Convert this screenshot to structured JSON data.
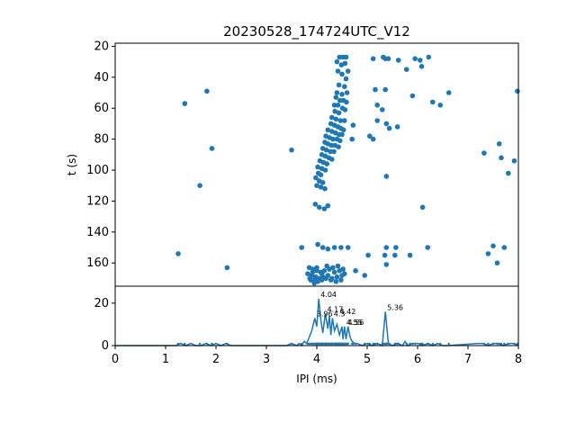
{
  "chart_data": [
    {
      "type": "scatter",
      "title": "20230528_174724UTC_V12",
      "xlabel": "",
      "ylabel": "t (s)",
      "xlim": [
        0,
        8
      ],
      "ylim": [
        175,
        18
      ],
      "y_inverted": true,
      "y_ticks": [
        20,
        40,
        60,
        80,
        100,
        120,
        140,
        160
      ],
      "grid": false,
      "color": "#1f77b4",
      "points": [
        [
          1.38,
          57
        ],
        [
          1.82,
          49
        ],
        [
          1.92,
          86
        ],
        [
          1.68,
          110
        ],
        [
          1.25,
          154
        ],
        [
          2.22,
          163
        ],
        [
          3.5,
          87
        ],
        [
          3.7,
          150
        ],
        [
          4.62,
          150
        ],
        [
          4.77,
          165
        ],
        [
          4.95,
          168
        ],
        [
          5.02,
          155
        ],
        [
          5.12,
          28
        ],
        [
          5.32,
          27
        ],
        [
          5.36,
          28
        ],
        [
          5.42,
          28
        ],
        [
          5.62,
          29
        ],
        [
          5.78,
          35
        ],
        [
          5.95,
          28
        ],
        [
          6.05,
          29
        ],
        [
          6.08,
          33
        ],
        [
          6.22,
          27
        ],
        [
          5.16,
          48
        ],
        [
          5.36,
          48
        ],
        [
          5.2,
          68
        ],
        [
          5.38,
          70
        ],
        [
          5.44,
          73
        ],
        [
          5.6,
          72
        ],
        [
          5.05,
          78
        ],
        [
          5.12,
          80
        ],
        [
          5.38,
          104
        ],
        [
          5.2,
          58
        ],
        [
          5.3,
          61
        ],
        [
          5.9,
          52
        ],
        [
          6.3,
          56
        ],
        [
          6.45,
          58
        ],
        [
          6.62,
          50
        ],
        [
          7.98,
          49
        ],
        [
          7.32,
          89
        ],
        [
          7.62,
          83
        ],
        [
          7.66,
          92
        ],
        [
          7.8,
          102
        ],
        [
          7.92,
          94
        ],
        [
          6.1,
          124
        ],
        [
          5.38,
          150
        ],
        [
          5.57,
          150
        ],
        [
          5.35,
          155
        ],
        [
          5.55,
          155
        ],
        [
          5.85,
          155
        ],
        [
          6.2,
          150
        ],
        [
          7.4,
          154
        ],
        [
          7.5,
          149
        ],
        [
          7.58,
          160
        ],
        [
          7.72,
          150
        ],
        [
          5.38,
          161
        ],
        [
          4.72,
          71
        ],
        [
          4.7,
          80
        ],
        [
          4.45,
          27
        ],
        [
          4.52,
          27
        ],
        [
          4.58,
          27
        ],
        [
          4.4,
          30
        ],
        [
          4.49,
          32
        ],
        [
          4.56,
          31
        ],
        [
          4.62,
          36
        ],
        [
          4.42,
          36
        ],
        [
          4.5,
          38
        ],
        [
          4.58,
          41
        ],
        [
          4.44,
          45
        ],
        [
          4.55,
          46
        ],
        [
          4.4,
          50
        ],
        [
          4.5,
          51
        ],
        [
          4.6,
          50
        ],
        [
          4.38,
          53
        ],
        [
          4.46,
          55
        ],
        [
          4.53,
          55
        ],
        [
          4.59,
          56
        ],
        [
          4.35,
          58
        ],
        [
          4.42,
          58
        ],
        [
          4.51,
          60
        ],
        [
          4.56,
          61
        ],
        [
          4.36,
          62
        ],
        [
          4.44,
          63
        ],
        [
          4.3,
          66
        ],
        [
          4.38,
          67
        ],
        [
          4.47,
          68
        ],
        [
          4.55,
          68
        ],
        [
          4.28,
          70
        ],
        [
          4.35,
          71
        ],
        [
          4.42,
          72
        ],
        [
          4.48,
          73
        ],
        [
          4.53,
          74
        ],
        [
          4.22,
          74
        ],
        [
          4.3,
          75
        ],
        [
          4.37,
          76
        ],
        [
          4.44,
          77
        ],
        [
          4.5,
          77
        ],
        [
          4.18,
          78
        ],
        [
          4.25,
          79
        ],
        [
          4.32,
          80
        ],
        [
          4.4,
          80
        ],
        [
          4.46,
          81
        ],
        [
          4.16,
          82
        ],
        [
          4.22,
          83
        ],
        [
          4.29,
          84
        ],
        [
          4.36,
          84
        ],
        [
          4.43,
          85
        ],
        [
          4.12,
          86
        ],
        [
          4.19,
          87
        ],
        [
          4.27,
          88
        ],
        [
          4.34,
          88
        ],
        [
          4.1,
          90
        ],
        [
          4.17,
          91
        ],
        [
          4.24,
          92
        ],
        [
          4.3,
          93
        ],
        [
          4.06,
          94
        ],
        [
          4.13,
          95
        ],
        [
          4.2,
          96
        ],
        [
          4.02,
          98
        ],
        [
          4.1,
          99
        ],
        [
          4.17,
          100
        ],
        [
          4.03,
          102
        ],
        [
          4.08,
          103
        ],
        [
          3.98,
          105
        ],
        [
          4.05,
          107
        ],
        [
          4.12,
          108
        ],
        [
          4.0,
          110
        ],
        [
          4.08,
          111
        ],
        [
          4.16,
          112
        ],
        [
          3.97,
          122
        ],
        [
          4.05,
          124
        ],
        [
          4.15,
          125
        ],
        [
          4.22,
          123
        ],
        [
          4.02,
          148
        ],
        [
          4.12,
          150
        ],
        [
          4.22,
          151
        ],
        [
          4.35,
          150
        ],
        [
          4.48,
          150
        ],
        [
          3.85,
          163
        ],
        [
          3.92,
          164
        ],
        [
          4.0,
          165
        ],
        [
          4.08,
          166
        ],
        [
          4.15,
          165
        ],
        [
          4.25,
          164
        ],
        [
          4.35,
          166
        ],
        [
          4.45,
          165
        ],
        [
          4.55,
          167
        ],
        [
          3.82,
          167
        ],
        [
          3.9,
          168
        ],
        [
          3.98,
          169
        ],
        [
          4.05,
          170
        ],
        [
          4.12,
          169
        ],
        [
          4.22,
          168
        ],
        [
          4.3,
          170
        ],
        [
          4.4,
          169
        ],
        [
          4.5,
          168
        ],
        [
          3.88,
          171
        ],
        [
          3.95,
          171
        ],
        [
          4.02,
          172
        ],
        [
          4.1,
          171
        ],
        [
          4.18,
          170
        ],
        [
          4.28,
          171
        ],
        [
          4.38,
          172
        ],
        [
          4.48,
          171
        ],
        [
          3.92,
          166
        ],
        [
          4.0,
          163
        ],
        [
          4.1,
          167
        ],
        [
          4.2,
          162
        ],
        [
          4.32,
          163
        ],
        [
          4.42,
          162
        ],
        [
          3.86,
          170
        ],
        [
          3.95,
          173
        ],
        [
          4.52,
          164
        ]
      ]
    },
    {
      "type": "line",
      "xlabel": "IPI (ms)",
      "ylabel": "",
      "xlim": [
        0,
        8
      ],
      "ylim": [
        0,
        28
      ],
      "x_ticks": [
        0,
        1,
        2,
        3,
        4,
        5,
        6,
        7,
        8
      ],
      "y_ticks": [
        0,
        20
      ],
      "color": "#1f77b4",
      "series": [
        {
          "x": [
            0,
            1.2,
            1.3,
            1.4,
            1.5,
            1.6,
            1.7,
            1.8,
            1.9,
            2.0,
            2.1,
            2.2,
            2.3,
            3.4,
            3.5,
            3.6,
            3.65,
            3.7,
            3.75,
            3.8,
            3.85,
            3.9,
            3.96,
            4.0,
            4.04,
            4.08,
            4.12,
            4.17,
            4.22,
            4.25,
            4.28,
            4.31,
            4.35,
            4.4,
            4.45,
            4.5,
            4.52,
            4.55,
            4.58,
            4.62,
            4.66,
            4.7,
            4.75,
            4.8,
            4.9,
            5.0,
            5.1,
            5.2,
            5.3,
            5.36,
            5.42,
            5.5,
            5.6,
            5.7,
            5.75,
            5.8,
            5.9,
            6.0,
            6.1,
            6.2,
            6.3,
            6.4,
            6.5,
            6.6,
            7.2,
            7.3,
            7.4,
            7.5,
            7.6,
            7.7,
            7.8,
            7.9,
            8.0
          ],
          "y": [
            0,
            0,
            1,
            0,
            1,
            0,
            0,
            1,
            0,
            1,
            0,
            1,
            0,
            0,
            1,
            0,
            1,
            0,
            2,
            1,
            4,
            7,
            13,
            9,
            22,
            12,
            6,
            15,
            8,
            14,
            5,
            13,
            7,
            10,
            5,
            9,
            3,
            9,
            3,
            9,
            4,
            2,
            1,
            1,
            0,
            1,
            0,
            1,
            0,
            16,
            1,
            0,
            1,
            0,
            2,
            0,
            1,
            1,
            0,
            1,
            0,
            1,
            0,
            0,
            1,
            1,
            0,
            1,
            1,
            0,
            1,
            1,
            0
          ]
        }
      ],
      "annotations": [
        {
          "label": "4.04",
          "x": 4.04,
          "y": 22
        },
        {
          "label": "4.17",
          "x": 4.17,
          "y": 15
        },
        {
          "label": "4.42",
          "x": 4.42,
          "y": 14
        },
        {
          "label": "3.96",
          "x": 3.96,
          "y": 13
        },
        {
          "label": "4.3",
          "x": 4.3,
          "y": 13
        },
        {
          "label": "4.55",
          "x": 4.55,
          "y": 9
        },
        {
          "label": "4.56",
          "x": 4.58,
          "y": 9
        },
        {
          "label": "5.36",
          "x": 5.36,
          "y": 16
        }
      ]
    }
  ]
}
